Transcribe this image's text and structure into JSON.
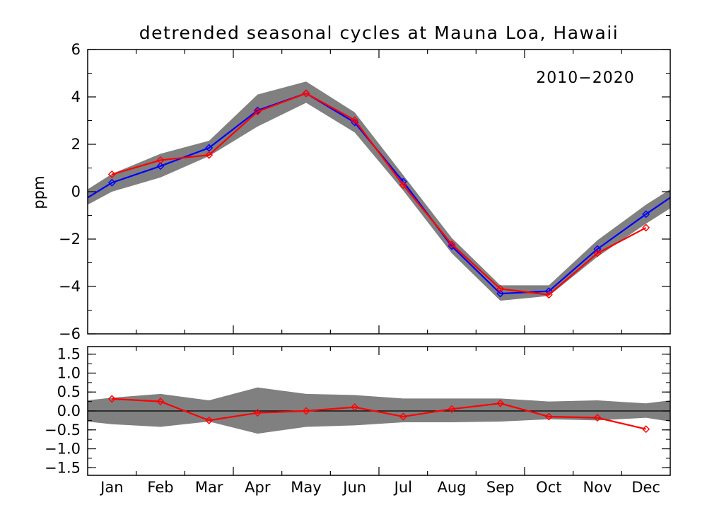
{
  "chart_data": [
    {
      "type": "line",
      "title": "detrended seasonal cycles at Mauna Loa, Hawaii",
      "annotation": "2010−2020",
      "ylabel": "ppm",
      "ylim": [
        -6,
        6
      ],
      "yticks": [
        {
          "value": 6,
          "label": "6"
        },
        {
          "value": 4,
          "label": "4"
        },
        {
          "value": 2,
          "label": "2"
        },
        {
          "value": 0,
          "label": "0"
        },
        {
          "value": -2,
          "label": "−2"
        },
        {
          "value": -4,
          "label": "−4"
        },
        {
          "value": -6,
          "label": "−6"
        }
      ],
      "colors": {
        "band": "#808080",
        "mean": "#0000ff",
        "current": "#ff0000"
      },
      "band": {
        "x": [
          -0.5,
          0,
          1,
          2,
          3,
          4,
          5,
          6,
          7,
          8,
          9,
          10,
          11,
          11.5
        ],
        "upper": [
          0.1,
          0.75,
          1.6,
          2.15,
          4.1,
          4.65,
          3.35,
          0.7,
          -1.95,
          -3.95,
          -3.95,
          -2.05,
          -0.55,
          0.1
        ],
        "lower": [
          -0.55,
          0.0,
          0.6,
          1.5,
          2.75,
          3.75,
          2.5,
          0.05,
          -2.6,
          -4.6,
          -4.4,
          -2.75,
          -1.35,
          -0.7
        ]
      },
      "series": [
        {
          "values": [
            0.38,
            1.08,
            1.85,
            3.43,
            4.15,
            2.92,
            0.42,
            -2.3,
            -4.3,
            -4.2,
            -2.42,
            -0.95
          ],
          "extend_left": -0.25,
          "extend_right": -0.25
        },
        {
          "values": [
            0.73,
            1.33,
            1.55,
            3.38,
            4.15,
            3.02,
            0.28,
            -2.22,
            -4.1,
            -4.35,
            -2.6,
            -1.52
          ]
        }
      ]
    },
    {
      "type": "line",
      "ylim": [
        -1.7,
        1.7
      ],
      "yticks": [
        {
          "value": 1.5,
          "label": "1.5"
        },
        {
          "value": 1.0,
          "label": "1.0"
        },
        {
          "value": 0.5,
          "label": "0.5"
        },
        {
          "value": 0.0,
          "label": "0.0"
        },
        {
          "value": -0.5,
          "label": "−0.5"
        },
        {
          "value": -1.0,
          "label": "−1.0"
        },
        {
          "value": -1.5,
          "label": "−1.5"
        }
      ],
      "categories": [
        "Jan",
        "Feb",
        "Mar",
        "Apr",
        "May",
        "Jun",
        "Jul",
        "Aug",
        "Sep",
        "Oct",
        "Nov",
        "Dec"
      ],
      "colors": {
        "band": "#808080",
        "zero": "#000000",
        "diff": "#ff0000"
      },
      "band": {
        "x": [
          -0.5,
          0,
          1,
          2,
          3,
          4,
          5,
          6,
          7,
          8,
          9,
          10,
          11,
          11.5
        ],
        "upper": [
          0.28,
          0.35,
          0.45,
          0.28,
          0.62,
          0.45,
          0.42,
          0.33,
          0.33,
          0.33,
          0.25,
          0.28,
          0.2,
          0.28
        ],
        "lower": [
          -0.28,
          -0.35,
          -0.42,
          -0.28,
          -0.6,
          -0.42,
          -0.38,
          -0.3,
          -0.3,
          -0.28,
          -0.22,
          -0.25,
          -0.18,
          -0.28
        ]
      },
      "series": [
        {
          "values": [
            0.32,
            0.25,
            -0.25,
            -0.05,
            0.0,
            0.1,
            -0.15,
            0.05,
            0.2,
            -0.15,
            -0.18,
            -0.48
          ]
        }
      ]
    }
  ]
}
